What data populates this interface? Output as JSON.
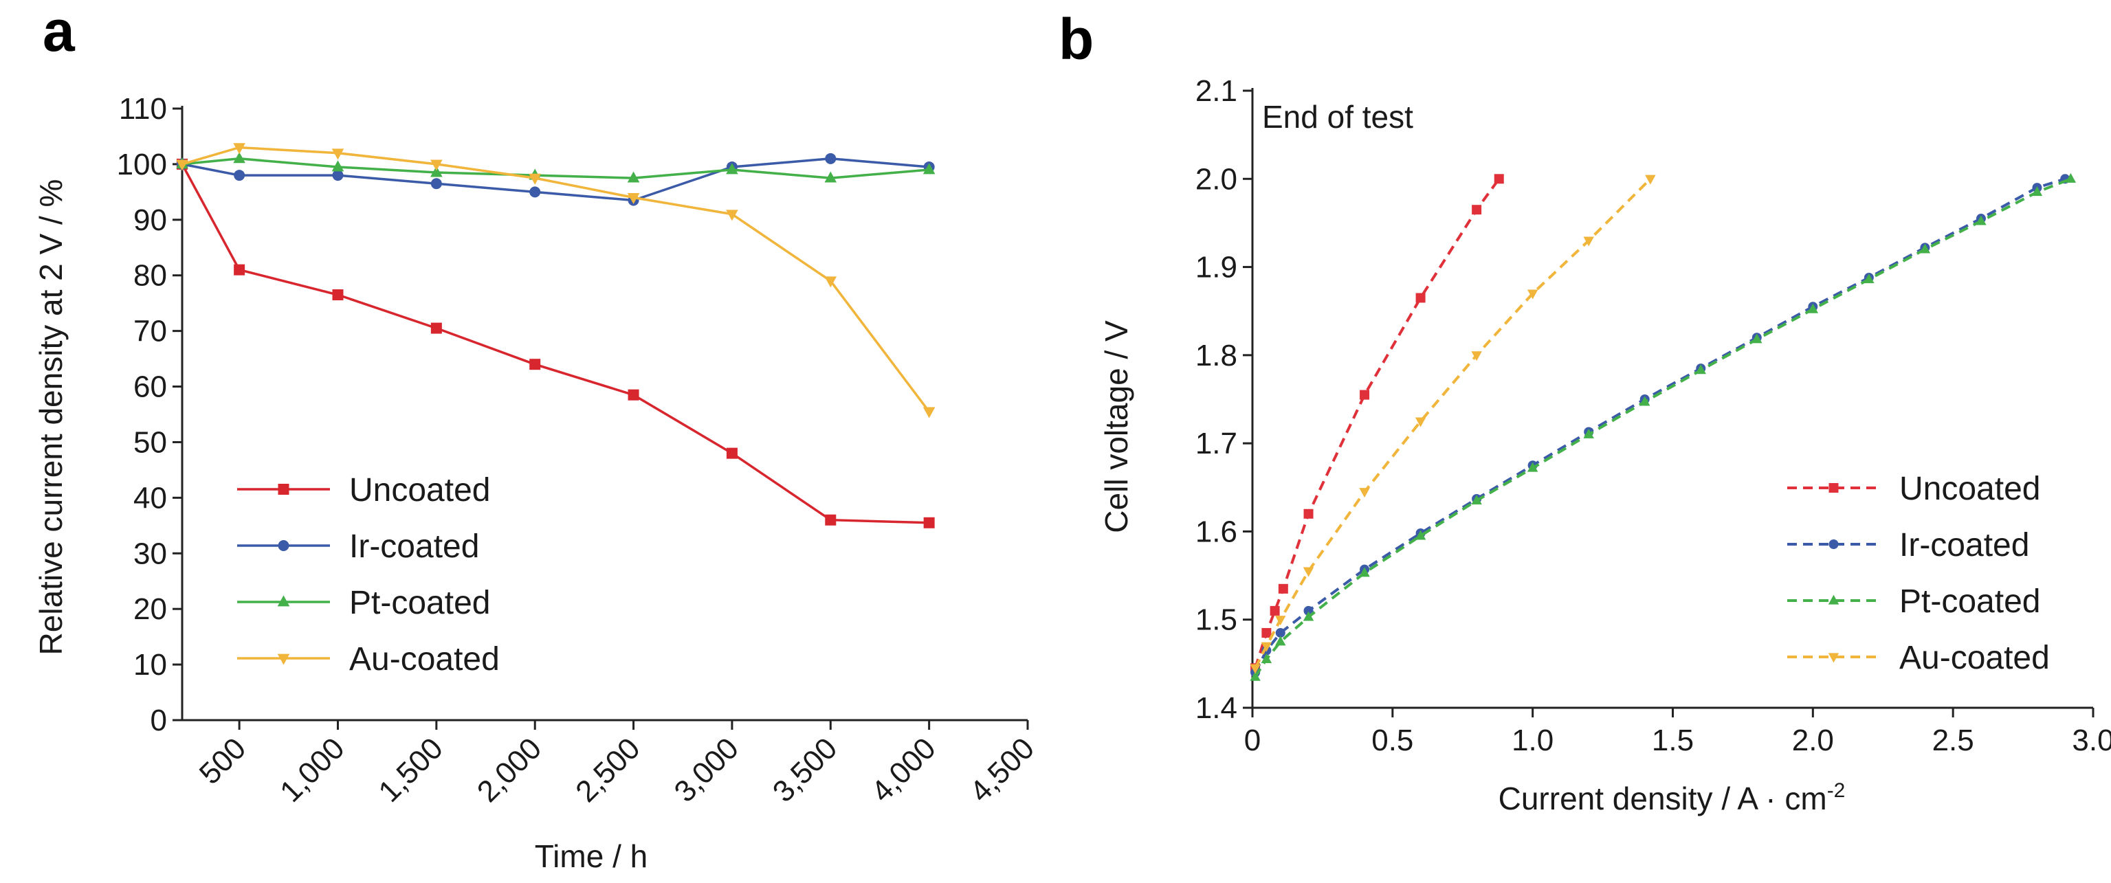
{
  "chart_data": [
    {
      "panel": "a",
      "type": "line",
      "xlabel": "Time / h",
      "ylabel": "Relative current density at 2 V / %",
      "xlim": [
        210,
        4500
      ],
      "ylim": [
        0,
        110
      ],
      "x_ticks": [
        500,
        1000,
        1500,
        2000,
        2500,
        3000,
        3500,
        4000,
        4500
      ],
      "x_tick_labels": [
        "500",
        "1,000",
        "1,500",
        "2,000",
        "2,500",
        "3,000",
        "3,500",
        "4,000",
        "4,500"
      ],
      "y_ticks": [
        0,
        10,
        20,
        30,
        40,
        50,
        60,
        70,
        80,
        90,
        100,
        110
      ],
      "grid": false,
      "legend_position": "bottom-left",
      "series": [
        {
          "name": "Uncoated",
          "color": "#d8262e",
          "marker": "square",
          "x": [
            210,
            500,
            1000,
            1500,
            2000,
            2500,
            3000,
            3500,
            4000
          ],
          "y": [
            100,
            81,
            76.5,
            70.5,
            64,
            58.5,
            48,
            36,
            35.5
          ]
        },
        {
          "name": "Ir-coated",
          "color": "#3b5ba8",
          "marker": "circle",
          "x": [
            210,
            500,
            1000,
            1500,
            2000,
            2500,
            3000,
            3500,
            4000
          ],
          "y": [
            100,
            98,
            98,
            96.5,
            95,
            93.5,
            99.5,
            101,
            99.5
          ]
        },
        {
          "name": "Pt-coated",
          "color": "#43b04a",
          "marker": "triangle-up",
          "x": [
            210,
            500,
            1000,
            1500,
            2000,
            2500,
            3000,
            3500,
            4000
          ],
          "y": [
            100,
            101,
            99.5,
            98.5,
            98,
            97.5,
            99,
            97.5,
            99
          ]
        },
        {
          "name": "Au-coated",
          "color": "#f0b53a",
          "marker": "triangle-down",
          "x": [
            210,
            500,
            1000,
            1500,
            2000,
            2500,
            3000,
            3500,
            4000
          ],
          "y": [
            100,
            103,
            102,
            100,
            97.5,
            94,
            91,
            79,
            55.5
          ]
        }
      ]
    },
    {
      "panel": "b",
      "type": "line",
      "annotation": "End of test",
      "xlabel": "Current density / A · cm",
      "xlabel_superscript": "-2",
      "ylabel": "Cell voltage / V",
      "xlim": [
        0,
        3.0
      ],
      "ylim": [
        1.4,
        2.1
      ],
      "x_ticks": [
        0,
        0.5,
        1.0,
        1.5,
        2.0,
        2.5,
        3.0
      ],
      "x_tick_labels": [
        "0",
        "0.5",
        "1.0",
        "1.5",
        "2.0",
        "2.5",
        "3.0"
      ],
      "y_ticks": [
        1.4,
        1.5,
        1.6,
        1.7,
        1.8,
        1.9,
        2.0,
        2.1
      ],
      "y_tick_labels": [
        "1.4",
        "1.5",
        "1.6",
        "1.7",
        "1.8",
        "1.9",
        "2.0",
        "2.1"
      ],
      "grid": false,
      "legend_position": "bottom-right",
      "series": [
        {
          "name": "Uncoated",
          "color": "#e0313a",
          "marker": "square",
          "x": [
            0.01,
            0.05,
            0.08,
            0.11,
            0.2,
            0.4,
            0.6,
            0.8,
            0.88
          ],
          "y": [
            1.445,
            1.485,
            1.51,
            1.535,
            1.62,
            1.755,
            1.865,
            1.965,
            2.0
          ]
        },
        {
          "name": "Ir-coated",
          "color": "#3b5ba8",
          "marker": "circle",
          "x": [
            0.01,
            0.05,
            0.1,
            0.2,
            0.4,
            0.6,
            0.8,
            1.0,
            1.2,
            1.4,
            1.6,
            1.8,
            2.0,
            2.2,
            2.4,
            2.6,
            2.8,
            2.9
          ],
          "y": [
            1.44,
            1.465,
            1.485,
            1.51,
            1.557,
            1.598,
            1.637,
            1.675,
            1.713,
            1.75,
            1.785,
            1.82,
            1.855,
            1.888,
            1.922,
            1.955,
            1.99,
            2.0
          ]
        },
        {
          "name": "Pt-coated",
          "color": "#43b04a",
          "marker": "triangle-up",
          "x": [
            0.01,
            0.05,
            0.1,
            0.2,
            0.4,
            0.6,
            0.8,
            1.0,
            1.2,
            1.4,
            1.6,
            1.8,
            2.0,
            2.2,
            2.4,
            2.6,
            2.8,
            2.92
          ],
          "y": [
            1.435,
            1.455,
            1.475,
            1.503,
            1.553,
            1.595,
            1.635,
            1.672,
            1.71,
            1.747,
            1.783,
            1.818,
            1.852,
            1.886,
            1.92,
            1.952,
            1.985,
            2.0
          ]
        },
        {
          "name": "Au-coated",
          "color": "#f0b53a",
          "marker": "triangle-down",
          "x": [
            0.01,
            0.05,
            0.1,
            0.2,
            0.4,
            0.6,
            0.8,
            1.0,
            1.2,
            1.42
          ],
          "y": [
            1.445,
            1.47,
            1.5,
            1.555,
            1.645,
            1.725,
            1.8,
            1.87,
            1.93,
            2.0
          ]
        }
      ]
    }
  ],
  "labels": {
    "panel_a": "a",
    "panel_b": "b"
  }
}
